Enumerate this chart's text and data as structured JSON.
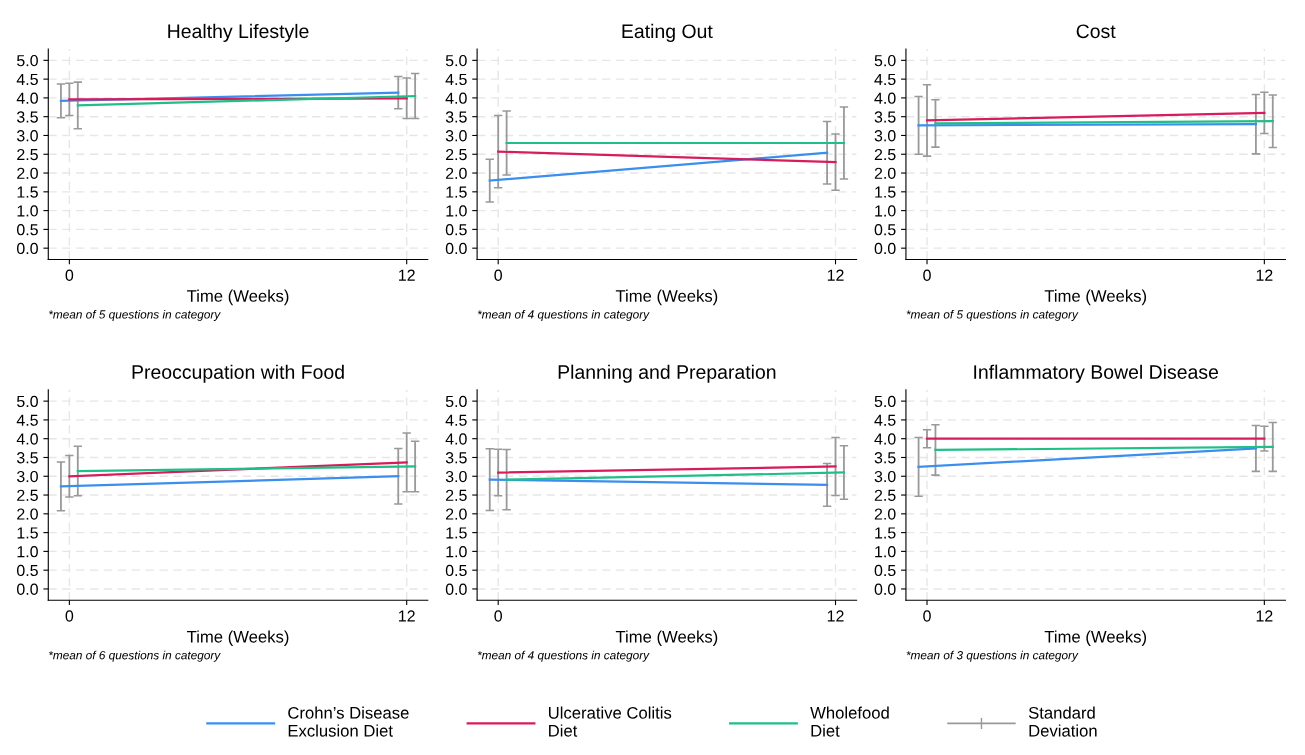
{
  "chart_data": [
    {
      "type": "line",
      "title": "Healthy Lifestyle",
      "xlabel": "Time (Weeks)",
      "xlim": [
        -0.75,
        12.75
      ],
      "xticks": [
        0,
        12
      ],
      "ylim": [
        -0.3,
        5.3
      ],
      "yticks": [
        {
          "value": 0,
          "label": "0.0"
        },
        0.5,
        {
          "value": 1,
          "label": "1.0"
        },
        1.5,
        {
          "value": 2,
          "label": "2.0"
        },
        2.5,
        {
          "value": 3,
          "label": "3.0"
        },
        3.5,
        {
          "value": 4,
          "label": "4.0"
        },
        4.5,
        {
          "value": 5,
          "label": "5.0"
        }
      ],
      "grid": true,
      "legend": "bottom",
      "annotations": [
        "*mean of 5 questions in category",
        "Standard\nDeviation"
      ],
      "series": [
        {
          "name": "Crohn’s Disease\nExclusion Diet",
          "color": "#3a8ef0",
          "x": [
            -0.3,
            11.7
          ],
          "values": [
            3.92,
            4.14
          ],
          "errors": [
            0.45,
            0.43
          ]
        },
        {
          "name": "Ulcerative Colitis\nDiet",
          "color": "#d81b5a",
          "x": [
            0,
            12
          ],
          "values": [
            3.96,
            3.99
          ],
          "errors": [
            0.43,
            0.54
          ]
        },
        {
          "name": "Wholefood\nDiet",
          "color": "#1fbf86",
          "x": [
            0.3,
            12.3
          ],
          "values": [
            3.8,
            4.05
          ],
          "errors": [
            0.62,
            0.6
          ]
        }
      ]
    },
    {
      "type": "line",
      "title": "Eating Out",
      "xlabel": "Time (Weeks)",
      "xlim": [
        -0.75,
        12.75
      ],
      "xticks": [
        0,
        12
      ],
      "ylim": [
        -0.3,
        5.3
      ],
      "yticks": [
        {
          "value": 0,
          "label": "0.0"
        },
        0.5,
        {
          "value": 1,
          "label": "1.0"
        },
        1.5,
        {
          "value": 2,
          "label": "2.0"
        },
        2.5,
        {
          "value": 3,
          "label": "3.0"
        },
        3.5,
        {
          "value": 4,
          "label": "4.0"
        },
        4.5,
        {
          "value": 5,
          "label": "5.0"
        }
      ],
      "grid": true,
      "annotations": [
        "*mean of 4 questions in category"
      ],
      "series": [
        {
          "color": "#3a8ef0",
          "x": [
            -0.3,
            11.7
          ],
          "values": [
            1.8,
            2.54
          ],
          "errors": [
            0.57,
            0.83
          ]
        },
        {
          "color": "#d81b5a",
          "x": [
            0,
            12
          ],
          "values": [
            2.57,
            2.29
          ],
          "errors": [
            0.96,
            0.75
          ]
        },
        {
          "color": "#1fbf86",
          "x": [
            0.3,
            12.3
          ],
          "values": [
            2.8,
            2.8
          ],
          "errors": [
            0.85,
            0.96
          ]
        }
      ]
    },
    {
      "type": "line",
      "title": "Cost",
      "xlabel": "Time (Weeks)",
      "xlim": [
        -0.75,
        12.75
      ],
      "xticks": [
        0,
        12
      ],
      "ylim": [
        -0.3,
        5.3
      ],
      "yticks": [
        {
          "value": 0,
          "label": "0.0"
        },
        0.5,
        {
          "value": 1,
          "label": "1.0"
        },
        1.5,
        {
          "value": 2,
          "label": "2.0"
        },
        2.5,
        {
          "value": 3,
          "label": "3.0"
        },
        3.5,
        {
          "value": 4,
          "label": "4.0"
        },
        4.5,
        {
          "value": 5,
          "label": "5.0"
        }
      ],
      "grid": true,
      "annotations": [
        "*mean of 5 questions in category"
      ],
      "series": [
        {
          "color": "#3a8ef0",
          "x": [
            -0.3,
            11.7
          ],
          "values": [
            3.27,
            3.3
          ],
          "errors": [
            0.77,
            0.79
          ]
        },
        {
          "color": "#d81b5a",
          "x": [
            0,
            12
          ],
          "values": [
            3.4,
            3.6
          ],
          "errors": [
            0.95,
            0.55
          ]
        },
        {
          "color": "#1fbf86",
          "x": [
            0.3,
            12.3
          ],
          "values": [
            3.32,
            3.38
          ],
          "errors": [
            0.63,
            0.7
          ]
        }
      ]
    },
    {
      "type": "line",
      "title": "Preoccupation with Food",
      "xlabel": "Time (Weeks)",
      "xlim": [
        -0.75,
        12.75
      ],
      "xticks": [
        0,
        12
      ],
      "ylim": [
        -0.3,
        5.3
      ],
      "yticks": [
        {
          "value": 0,
          "label": "0.0"
        },
        0.5,
        {
          "value": 1,
          "label": "1.0"
        },
        1.5,
        {
          "value": 2,
          "label": "2.0"
        },
        2.5,
        {
          "value": 3,
          "label": "3.0"
        },
        3.5,
        {
          "value": 4,
          "label": "4.0"
        },
        4.5,
        {
          "value": 5,
          "label": "5.0"
        }
      ],
      "grid": true,
      "annotations": [
        "*mean of 6 questions in category"
      ],
      "series": [
        {
          "color": "#3a8ef0",
          "x": [
            -0.3,
            11.7
          ],
          "values": [
            2.73,
            3.0
          ],
          "errors": [
            0.65,
            0.74
          ]
        },
        {
          "color": "#d81b5a",
          "x": [
            0,
            12
          ],
          "values": [
            3.0,
            3.37
          ],
          "errors": [
            0.55,
            0.78
          ]
        },
        {
          "color": "#1fbf86",
          "x": [
            0.3,
            12.3
          ],
          "values": [
            3.14,
            3.26
          ],
          "errors": [
            0.66,
            0.67
          ]
        }
      ]
    },
    {
      "type": "line",
      "title": "Planning and Preparation",
      "xlabel": "Time (Weeks)",
      "xlim": [
        -0.75,
        12.75
      ],
      "xticks": [
        0,
        12
      ],
      "ylim": [
        -0.3,
        5.3
      ],
      "yticks": [
        {
          "value": 0,
          "label": "0.0"
        },
        0.5,
        {
          "value": 1,
          "label": "1.0"
        },
        1.5,
        {
          "value": 2,
          "label": "2.0"
        },
        2.5,
        {
          "value": 3,
          "label": "3.0"
        },
        3.5,
        {
          "value": 4,
          "label": "4.0"
        },
        4.5,
        {
          "value": 5,
          "label": "5.0"
        }
      ],
      "grid": true,
      "annotations": [
        "*mean of 4 questions in category"
      ],
      "series": [
        {
          "color": "#3a8ef0",
          "x": [
            -0.3,
            11.7
          ],
          "values": [
            2.91,
            2.77
          ],
          "errors": [
            0.82,
            0.57
          ]
        },
        {
          "color": "#d81b5a",
          "x": [
            0,
            12
          ],
          "values": [
            3.1,
            3.26
          ],
          "errors": [
            0.62,
            0.77
          ]
        },
        {
          "color": "#1fbf86",
          "x": [
            0.3,
            12.3
          ],
          "values": [
            2.91,
            3.1
          ],
          "errors": [
            0.8,
            0.71
          ]
        }
      ]
    },
    {
      "type": "line",
      "title": "Inflammatory Bowel Disease",
      "xlabel": "Time (Weeks)",
      "xlim": [
        -0.75,
        12.75
      ],
      "xticks": [
        0,
        12
      ],
      "ylim": [
        -0.3,
        5.3
      ],
      "yticks": [
        {
          "value": 0,
          "label": "0.0"
        },
        0.5,
        {
          "value": 1,
          "label": "1.0"
        },
        1.5,
        {
          "value": 2,
          "label": "2.0"
        },
        2.5,
        {
          "value": 3,
          "label": "3.0"
        },
        3.5,
        {
          "value": 4,
          "label": "4.0"
        },
        4.5,
        {
          "value": 5,
          "label": "5.0"
        }
      ],
      "grid": true,
      "annotations": [
        "*mean of 3 questions in category"
      ],
      "series": [
        {
          "color": "#3a8ef0",
          "x": [
            -0.3,
            11.7
          ],
          "values": [
            3.25,
            3.74
          ],
          "errors": [
            0.78,
            0.61
          ]
        },
        {
          "color": "#d81b5a",
          "x": [
            0,
            12
          ],
          "values": [
            4.0,
            4.0
          ],
          "errors": [
            0.24,
            0.33
          ]
        },
        {
          "color": "#1fbf86",
          "x": [
            0.3,
            12.3
          ],
          "values": [
            3.7,
            3.78
          ],
          "errors": [
            0.67,
            0.65
          ]
        }
      ]
    }
  ]
}
